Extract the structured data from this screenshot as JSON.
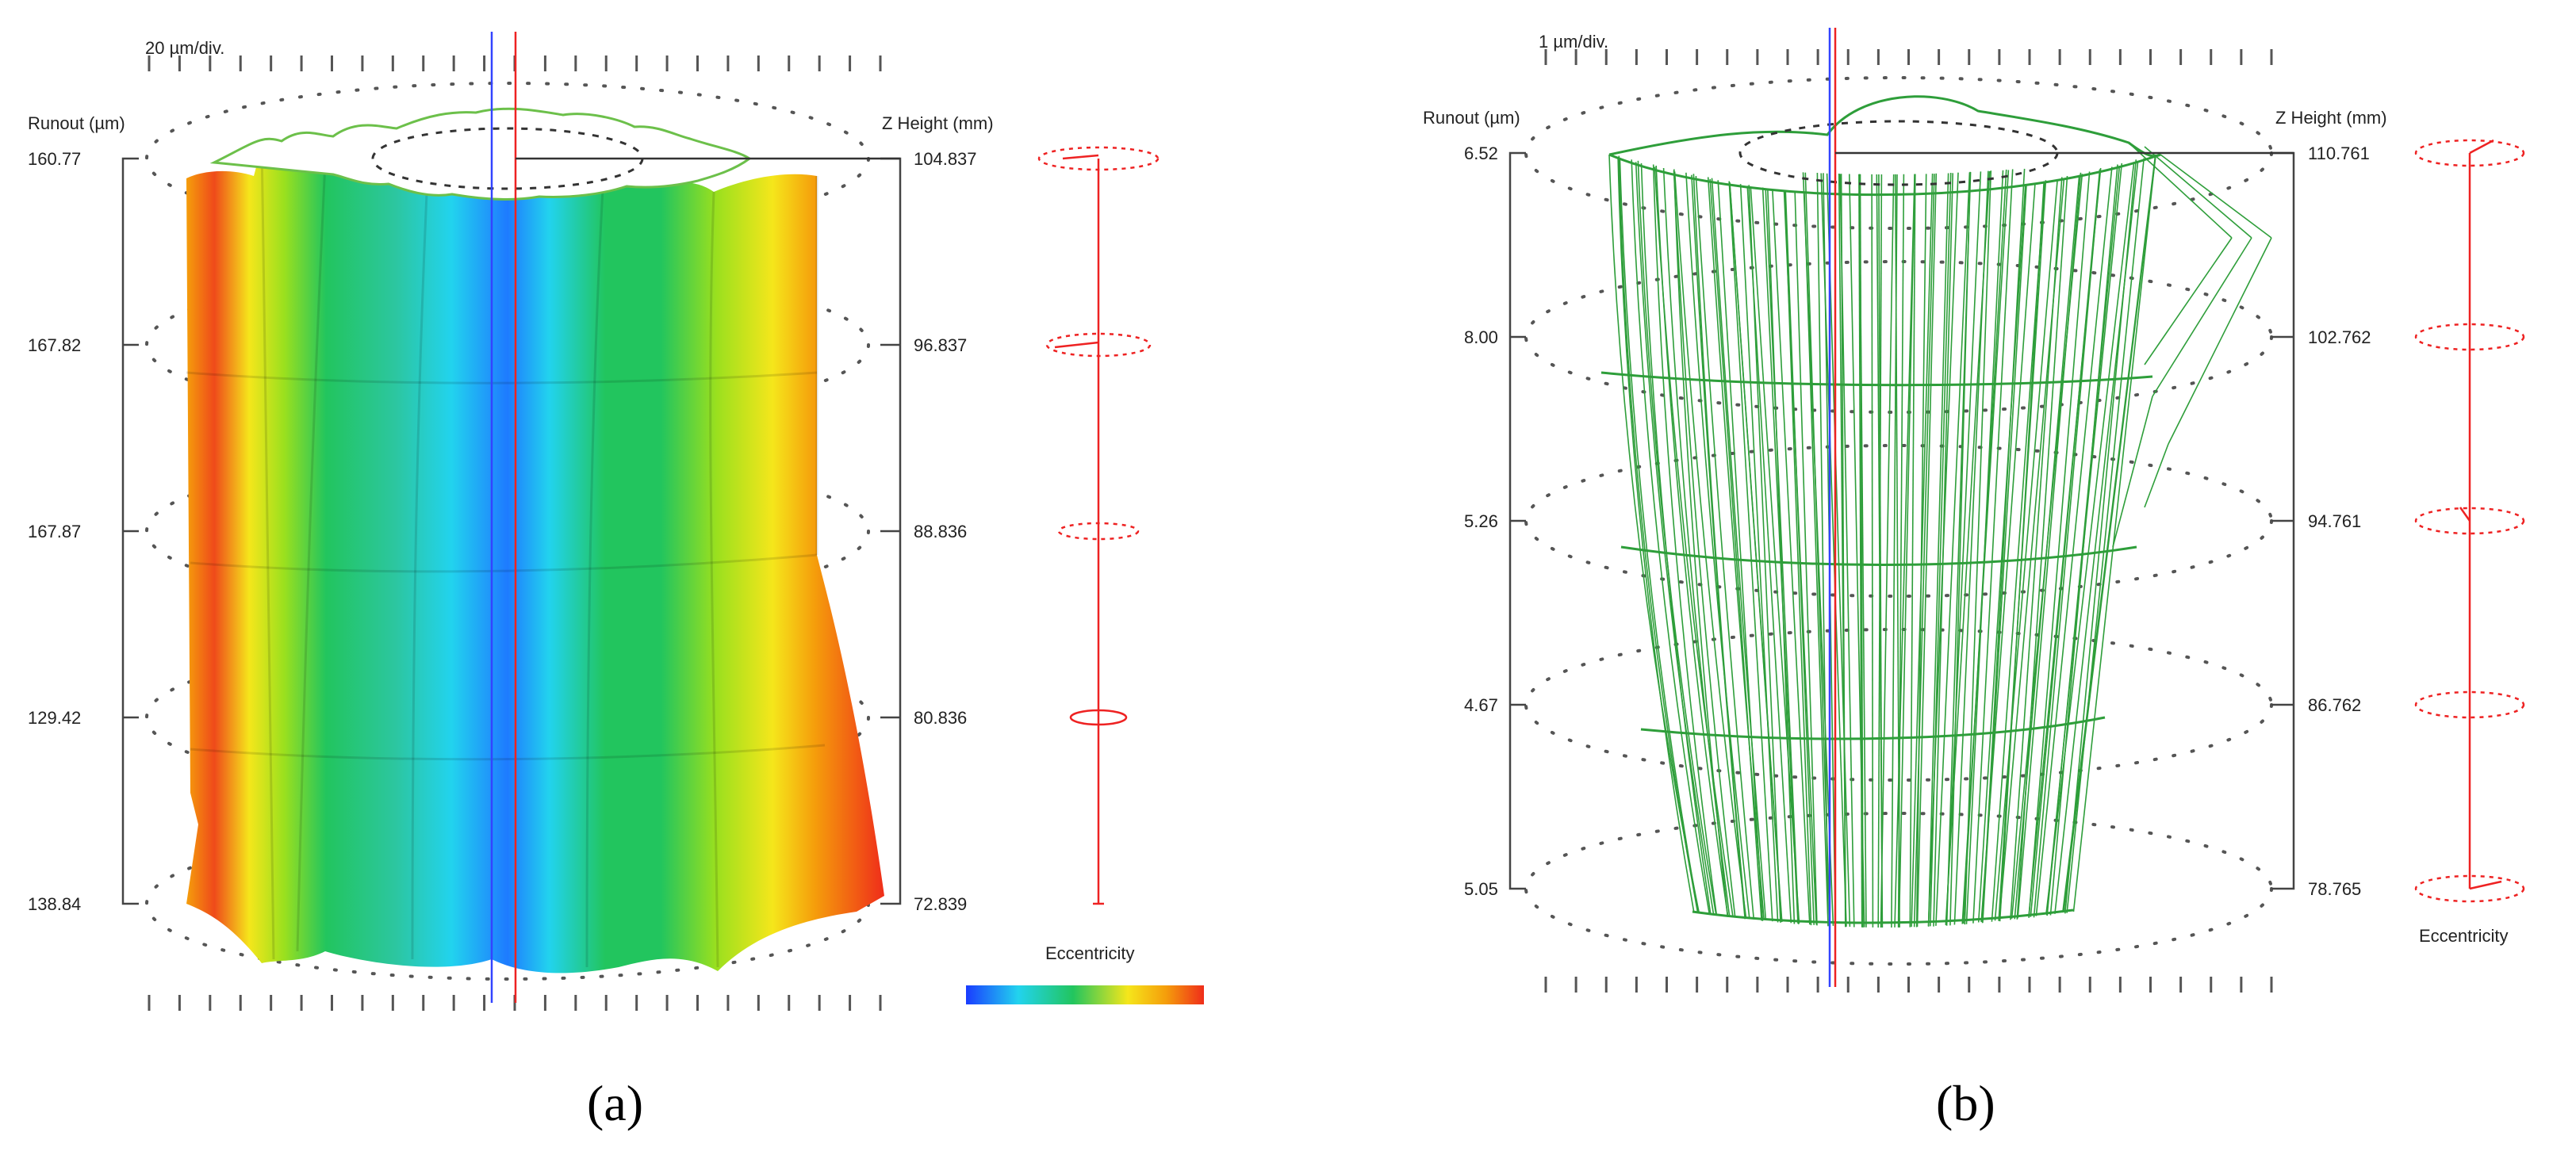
{
  "panel_a": {
    "scale": "20 µm/div.",
    "runout_header": "Runout (µm)",
    "z_header": "Z Height (mm)",
    "runout_values": [
      "160.77",
      "167.82",
      "167.87",
      "129.42",
      "138.84"
    ],
    "z_values": [
      "104.837",
      "96.837",
      "88.836",
      "80.836",
      "72.839"
    ],
    "legend_label": "Eccentricity",
    "colors": {
      "blue": "#1a3cff",
      "cyan": "#22d3ee",
      "green": "#22c55e",
      "yellow": "#f5e61b",
      "orange": "#f59e0b",
      "red": "#ef2d1a"
    },
    "caption": "(a)"
  },
  "panel_b": {
    "scale": "1 µm/div.",
    "runout_header": "Runout (µm)",
    "z_header": "Z Height (mm)",
    "runout_values": [
      "6.52",
      "8.00",
      "5.26",
      "4.67",
      "5.05"
    ],
    "z_values": [
      "110.761",
      "102.762",
      "94.761",
      "86.762",
      "78.765"
    ],
    "legend_label": "Eccentricity",
    "wire_color": "#2e9e3a",
    "caption": "(b)"
  }
}
